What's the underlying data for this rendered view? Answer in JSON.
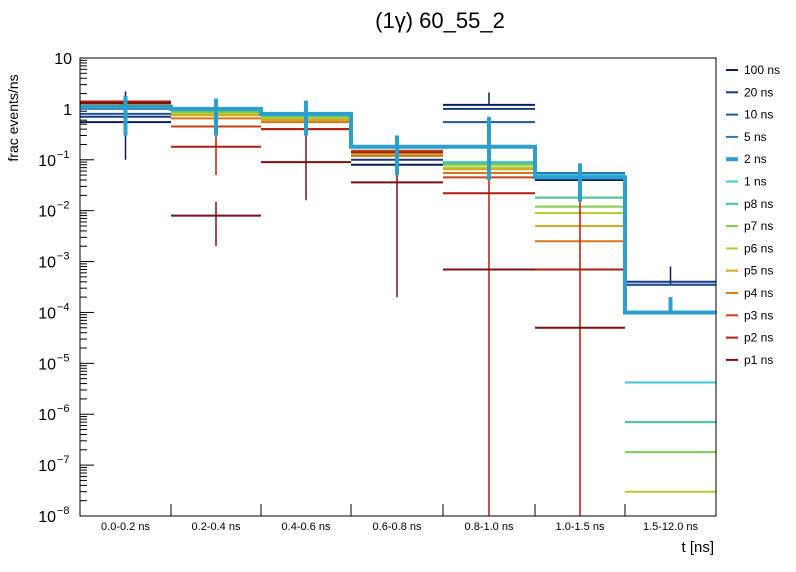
{
  "chart_data": {
    "type": "step-histogram",
    "title": "(1γ) 60_55_2",
    "xlabel": "t [ns]",
    "ylabel": "frac events/ns",
    "yscale": "log",
    "ylim": [
      1e-08,
      10
    ],
    "y_ticks": [
      {
        "value": 10,
        "label": "10"
      },
      {
        "value": 1,
        "label": "1"
      },
      {
        "value": 0.1,
        "label": "10",
        "exp": "−1"
      },
      {
        "value": 0.01,
        "label": "10",
        "exp": "−2"
      },
      {
        "value": 0.001,
        "label": "10",
        "exp": "−3"
      },
      {
        "value": 0.0001,
        "label": "10",
        "exp": "−4"
      },
      {
        "value": 1e-05,
        "label": "10",
        "exp": "−5"
      },
      {
        "value": 1e-06,
        "label": "10",
        "exp": "−6"
      },
      {
        "value": 1e-07,
        "label": "10",
        "exp": "−7"
      },
      {
        "value": 1e-08,
        "label": "10",
        "exp": "−8"
      }
    ],
    "categories": [
      "0.0-0.2 ns",
      "0.2-0.4 ns",
      "0.4-0.6 ns",
      "0.6-0.8 ns",
      "0.8-1.0 ns",
      "1.0-1.5 ns",
      "1.5-12.0 ns"
    ],
    "series": [
      {
        "name": "100 ns",
        "color": "#0a1e5c",
        "values": [
          0.55,
          0.9,
          0.6,
          0.08,
          1.2,
          0.04,
          0.00035
        ],
        "err_lo": [
          0.1,
          null,
          null,
          null,
          null,
          null,
          null
        ],
        "err_hi": [
          2.2,
          null,
          null,
          null,
          2.1,
          null,
          0.0008
        ]
      },
      {
        "name": "20 ns",
        "color": "#183a80",
        "values": [
          0.7,
          0.95,
          0.65,
          0.1,
          1.0,
          0.045,
          0.0004
        ],
        "err_lo": [
          null,
          null,
          null,
          null,
          null,
          null,
          null
        ],
        "err_hi": [
          null,
          null,
          null,
          null,
          null,
          null,
          null
        ]
      },
      {
        "name": "10 ns",
        "color": "#1f5898",
        "values": [
          0.8,
          1.0,
          0.7,
          0.12,
          0.55,
          0.05,
          0.00035
        ],
        "err_lo": [
          null,
          null,
          null,
          null,
          null,
          null,
          null
        ],
        "err_hi": [
          null,
          null,
          null,
          null,
          null,
          null,
          null
        ]
      },
      {
        "name": "5 ns",
        "color": "#2a78b8",
        "values": [
          1.0,
          1.0,
          0.75,
          0.15,
          0.07,
          0.055,
          null
        ],
        "err_lo": [
          null,
          null,
          null,
          null,
          null,
          null,
          null
        ],
        "err_hi": [
          null,
          null,
          null,
          null,
          null,
          null,
          null
        ]
      },
      {
        "name": "2 ns",
        "color": "#2b9fd0",
        "highlight": true,
        "values": [
          1.1,
          1.0,
          0.8,
          0.18,
          0.18,
          0.045,
          0.0001
        ],
        "err_lo": [
          0.3,
          0.3,
          0.3,
          0.05,
          0.04,
          0.015,
          null
        ],
        "err_hi": [
          1.8,
          1.6,
          1.45,
          0.3,
          0.7,
          0.085,
          0.0002
        ]
      },
      {
        "name": "1 ns",
        "color": "#3ec8d0",
        "values": [
          1.1,
          0.95,
          0.75,
          0.15,
          0.09,
          0.05,
          4.2e-06
        ],
        "err_lo": [
          null,
          null,
          null,
          null,
          null,
          null,
          null
        ],
        "err_hi": [
          null,
          null,
          null,
          null,
          null,
          null,
          null
        ]
      },
      {
        "name": "p8 ns",
        "color": "#42c49a",
        "values": [
          1.1,
          0.9,
          0.7,
          0.14,
          0.085,
          0.018,
          7e-07
        ],
        "err_lo": [
          null,
          null,
          null,
          null,
          null,
          null,
          null
        ],
        "err_hi": [
          null,
          null,
          null,
          null,
          null,
          null,
          null
        ]
      },
      {
        "name": "p7 ns",
        "color": "#7ccc50",
        "values": [
          1.15,
          0.85,
          0.68,
          0.13,
          0.08,
          0.012,
          1.8e-07
        ],
        "err_lo": [
          null,
          null,
          null,
          null,
          null,
          null,
          null
        ],
        "err_hi": [
          null,
          null,
          null,
          null,
          null,
          null,
          null
        ]
      },
      {
        "name": "p6 ns",
        "color": "#b8cc30",
        "values": [
          1.2,
          0.8,
          0.65,
          0.13,
          0.07,
          0.009,
          3e-08
        ],
        "err_lo": [
          null,
          null,
          null,
          null,
          null,
          null,
          null
        ],
        "err_hi": [
          null,
          null,
          null,
          null,
          null,
          null,
          null
        ]
      },
      {
        "name": "p5 ns",
        "color": "#d4a820",
        "values": [
          1.25,
          0.75,
          0.6,
          0.12,
          0.065,
          0.005,
          null
        ],
        "err_lo": [
          null,
          null,
          null,
          null,
          null,
          null,
          null
        ],
        "err_hi": [
          null,
          null,
          null,
          null,
          null,
          null,
          null
        ]
      },
      {
        "name": "p4 ns",
        "color": "#d87818",
        "values": [
          1.3,
          0.65,
          0.55,
          0.12,
          0.055,
          0.0025,
          null
        ],
        "err_lo": [
          null,
          null,
          null,
          null,
          null,
          null,
          null
        ],
        "err_hi": [
          null,
          null,
          null,
          null,
          null,
          null,
          null
        ]
      },
      {
        "name": "p3 ns",
        "color": "#c84018",
        "values": [
          1.35,
          0.45,
          0.4,
          0.15,
          0.045,
          0.0007,
          null
        ],
        "err_lo": [
          null,
          null,
          null,
          null,
          null,
          null,
          null
        ],
        "err_hi": [
          null,
          null,
          null,
          null,
          null,
          null,
          null
        ]
      },
      {
        "name": "p2 ns",
        "color": "#b01c10",
        "values": [
          1.4,
          0.18,
          0.4,
          0.14,
          0.022,
          0.0007,
          null
        ],
        "err_lo": [
          null,
          0.05,
          null,
          null,
          1e-08,
          1e-08,
          null
        ],
        "err_hi": [
          null,
          0.4,
          null,
          null,
          0.15,
          0.075,
          null
        ]
      },
      {
        "name": "p1 ns",
        "color": "#7a1010",
        "values": [
          1.3,
          0.008,
          0.09,
          0.036,
          0.0007,
          5e-05,
          null
        ],
        "err_lo": [
          null,
          0.002,
          0.016,
          0.0002,
          null,
          null,
          null
        ],
        "err_hi": [
          null,
          0.015,
          0.32,
          0.28,
          null,
          null,
          null
        ]
      }
    ]
  }
}
